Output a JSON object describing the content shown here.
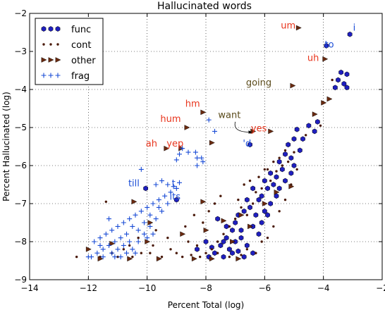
{
  "chart_data": {
    "type": "scatter",
    "title": "Hallucinated words",
    "xlabel": "Percent Total (log)",
    "ylabel": "Percent Hallucinated (log)",
    "xlim": [
      -14,
      -2
    ],
    "ylim": [
      -9,
      -2
    ],
    "xticks": [
      "−14",
      "−12",
      "−10",
      "−8",
      "−6",
      "−4",
      "−2"
    ],
    "yticks": [
      "−9",
      "−8",
      "−7",
      "−6",
      "−5",
      "−4",
      "−3",
      "−2"
    ],
    "xtick_values": [
      -14,
      -12,
      -10,
      -8,
      -6,
      -4,
      -2
    ],
    "ytick_values": [
      -9,
      -8,
      -7,
      -6,
      -5,
      -4,
      -3,
      -2
    ],
    "grid": true,
    "legend_position": "top-left",
    "series": [
      {
        "name": "func",
        "marker": "hexagon",
        "color": "#1f1fbf",
        "points": [
          [
            -3.1,
            -2.55
          ],
          [
            -3.9,
            -2.85
          ],
          [
            -3.4,
            -3.55
          ],
          [
            -3.2,
            -3.6
          ],
          [
            -3.5,
            -3.75
          ],
          [
            -3.3,
            -3.85
          ],
          [
            -3.6,
            -3.95
          ],
          [
            -3.2,
            -3.95
          ],
          [
            -4.2,
            -4.85
          ],
          [
            -4.3,
            -5.1
          ],
          [
            -4.5,
            -4.95
          ],
          [
            -4.9,
            -5.05
          ],
          [
            -4.7,
            -5.3
          ],
          [
            -5.0,
            -5.3
          ],
          [
            -4.8,
            -5.6
          ],
          [
            -5.2,
            -5.45
          ],
          [
            -5.1,
            -5.8
          ],
          [
            -5.3,
            -5.7
          ],
          [
            -5.5,
            -5.9
          ],
          [
            -5.4,
            -6.1
          ],
          [
            -5.6,
            -6.3
          ],
          [
            -5.8,
            -6.2
          ],
          [
            -5.7,
            -6.5
          ],
          [
            -5.9,
            -6.6
          ],
          [
            -6.0,
            -6.4
          ],
          [
            -6.1,
            -6.8
          ],
          [
            -6.2,
            -6.9
          ],
          [
            -6.4,
            -6.6
          ],
          [
            -6.5,
            -7.1
          ],
          [
            -6.6,
            -6.9
          ],
          [
            -6.7,
            -7.2
          ],
          [
            -6.9,
            -7.3
          ],
          [
            -7.0,
            -7.5
          ],
          [
            -7.1,
            -7.7
          ],
          [
            -7.3,
            -7.9
          ],
          [
            -7.5,
            -8.1
          ],
          [
            -7.7,
            -8.3
          ],
          [
            -7.9,
            -8.4
          ],
          [
            -6.3,
            -7.3
          ],
          [
            -6.0,
            -7.2
          ],
          [
            -5.8,
            -7.0
          ],
          [
            -5.6,
            -6.8
          ],
          [
            -6.4,
            -7.6
          ],
          [
            -6.2,
            -7.8
          ],
          [
            -6.8,
            -7.9
          ],
          [
            -7.2,
            -8.2
          ],
          [
            -7.0,
            -8.0
          ],
          [
            -6.6,
            -8.1
          ],
          [
            -6.4,
            -8.3
          ],
          [
            -8.0,
            -8.0
          ],
          [
            -8.3,
            -8.2
          ],
          [
            -7.6,
            -7.4
          ],
          [
            -7.3,
            -7.6
          ],
          [
            -6.1,
            -7.5
          ],
          [
            -5.9,
            -7.3
          ],
          [
            -5.5,
            -6.6
          ],
          [
            -5.3,
            -6.4
          ],
          [
            -5.1,
            -6.2
          ],
          [
            -5.0,
            -6.0
          ],
          [
            -6.5,
            -5.45
          ],
          [
            -10.05,
            -6.6
          ],
          [
            -9.0,
            -6.9
          ],
          [
            -6.8,
            -7.7
          ],
          [
            -7.8,
            -8.15
          ],
          [
            -7.4,
            -8.0
          ],
          [
            -6.9,
            -8.25
          ],
          [
            -6.7,
            -8.4
          ],
          [
            -7.4,
            -8.4
          ],
          [
            -7.1,
            -8.3
          ]
        ]
      },
      {
        "name": "cont",
        "marker": "dot",
        "color": "#4a1a0a",
        "points": [
          [
            -3.7,
            -3.75
          ],
          [
            -4.1,
            -4.95
          ],
          [
            -4.6,
            -5.2
          ],
          [
            -5.0,
            -5.65
          ],
          [
            -5.2,
            -5.9
          ],
          [
            -5.4,
            -6.0
          ],
          [
            -5.6,
            -6.15
          ],
          [
            -5.8,
            -6.4
          ],
          [
            -5.9,
            -6.1
          ],
          [
            -6.1,
            -6.6
          ],
          [
            -6.3,
            -6.7
          ],
          [
            -6.4,
            -7.0
          ],
          [
            -6.6,
            -7.3
          ],
          [
            -6.8,
            -7.1
          ],
          [
            -7.0,
            -7.4
          ],
          [
            -7.2,
            -7.6
          ],
          [
            -7.4,
            -7.8
          ],
          [
            -7.6,
            -8.0
          ],
          [
            -7.8,
            -8.2
          ],
          [
            -8.0,
            -8.3
          ],
          [
            -8.2,
            -8.4
          ],
          [
            -8.5,
            -8.35
          ],
          [
            -8.8,
            -8.4
          ],
          [
            -9.2,
            -8.2
          ],
          [
            -9.5,
            -8.4
          ],
          [
            -9.8,
            -8.1
          ],
          [
            -10.2,
            -8.3
          ],
          [
            -10.5,
            -8.4
          ],
          [
            -10.8,
            -8.2
          ],
          [
            -11.2,
            -8.3
          ],
          [
            -11.6,
            -8.4
          ],
          [
            -12.4,
            -8.4
          ],
          [
            -11.4,
            -6.95
          ],
          [
            -10.3,
            -7.9
          ],
          [
            -9.7,
            -7.7
          ],
          [
            -9.3,
            -7.9
          ],
          [
            -8.7,
            -7.6
          ],
          [
            -8.4,
            -7.3
          ],
          [
            -8.1,
            -7.5
          ],
          [
            -7.9,
            -7.2
          ],
          [
            -7.7,
            -7.0
          ],
          [
            -7.5,
            -6.8
          ],
          [
            -6.9,
            -6.9
          ],
          [
            -6.7,
            -6.5
          ],
          [
            -6.5,
            -6.4
          ],
          [
            -6.2,
            -6.3
          ],
          [
            -6.0,
            -6.1
          ],
          [
            -5.7,
            -5.9
          ],
          [
            -5.5,
            -5.8
          ],
          [
            -5.3,
            -5.6
          ],
          [
            -7.2,
            -8.4
          ],
          [
            -7.6,
            -8.3
          ],
          [
            -8.3,
            -8.1
          ],
          [
            -6.8,
            -8.35
          ],
          [
            -6.6,
            -8.2
          ],
          [
            -6.3,
            -8.3
          ],
          [
            -6.1,
            -8.0
          ],
          [
            -5.9,
            -7.9
          ],
          [
            -5.7,
            -7.6
          ],
          [
            -5.5,
            -7.2
          ],
          [
            -5.3,
            -6.9
          ],
          [
            -5.1,
            -6.5
          ],
          [
            -4.9,
            -6.1
          ],
          [
            -9.0,
            -8.3
          ],
          [
            -9.9,
            -8.3
          ],
          [
            -10.6,
            -8.1
          ],
          [
            -11.0,
            -8.4
          ],
          [
            -8.6,
            -8.0
          ]
        ]
      },
      {
        "name": "other",
        "marker": "triangle",
        "color": "#6a2a10",
        "points": [
          [
            -4.85,
            -2.38
          ],
          [
            -3.95,
            -3.2
          ],
          [
            -5.05,
            -3.9
          ],
          [
            -8.1,
            -4.6
          ],
          [
            -8.65,
            -5.0
          ],
          [
            -6.4,
            -5.1
          ],
          [
            -5.8,
            -5.1
          ],
          [
            -8.85,
            -5.55
          ],
          [
            -9.35,
            -5.55
          ],
          [
            -7.8,
            -5.4
          ],
          [
            -3.8,
            -4.25
          ],
          [
            -4.3,
            -4.65
          ],
          [
            -4.0,
            -4.35
          ],
          [
            -10.45,
            -6.95
          ],
          [
            -9.9,
            -7.5
          ],
          [
            -8.1,
            -6.95
          ],
          [
            -5.1,
            -6.55
          ],
          [
            -5.6,
            -6.7
          ],
          [
            -6.0,
            -7.0
          ],
          [
            -6.8,
            -7.3
          ],
          [
            -7.4,
            -7.45
          ],
          [
            -8.0,
            -7.7
          ],
          [
            -8.8,
            -7.8
          ],
          [
            -10.0,
            -8.0
          ],
          [
            -11.2,
            -8.05
          ],
          [
            -11.6,
            -8.45
          ],
          [
            -10.6,
            -8.45
          ],
          [
            -9.6,
            -8.45
          ],
          [
            -8.4,
            -8.45
          ],
          [
            -12.0,
            -8.2
          ],
          [
            -6.5,
            -7.6
          ],
          [
            -7.1,
            -8.0
          ],
          [
            -7.8,
            -8.45
          ],
          [
            -6.9,
            -8.45
          ]
        ]
      },
      {
        "name": "frag",
        "marker": "plus",
        "color": "#1a4cd6",
        "points": [
          [
            -8.8,
            -5.55
          ],
          [
            -8.6,
            -5.65
          ],
          [
            -8.9,
            -5.7
          ],
          [
            -8.35,
            -5.65
          ],
          [
            -8.3,
            -5.8
          ],
          [
            -8.1,
            -5.9
          ],
          [
            -8.15,
            -5.8
          ],
          [
            -7.9,
            -4.8
          ],
          [
            -7.7,
            -5.1
          ],
          [
            -9.0,
            -5.85
          ],
          [
            -8.3,
            -6.0
          ],
          [
            -10.2,
            -6.1
          ],
          [
            -9.3,
            -6.5
          ],
          [
            -9.1,
            -6.55
          ],
          [
            -9.5,
            -6.4
          ],
          [
            -9.7,
            -6.5
          ],
          [
            -9.4,
            -6.8
          ],
          [
            -9.6,
            -6.9
          ],
          [
            -9.8,
            -7.0
          ],
          [
            -10.0,
            -7.1
          ],
          [
            -10.2,
            -7.2
          ],
          [
            -10.4,
            -7.3
          ],
          [
            -10.6,
            -7.4
          ],
          [
            -10.8,
            -7.5
          ],
          [
            -11.0,
            -7.6
          ],
          [
            -11.2,
            -7.7
          ],
          [
            -11.4,
            -7.8
          ],
          [
            -11.6,
            -7.9
          ],
          [
            -11.8,
            -8.0
          ],
          [
            -10.5,
            -7.6
          ],
          [
            -10.7,
            -7.8
          ],
          [
            -10.9,
            -7.9
          ],
          [
            -11.1,
            -8.0
          ],
          [
            -11.3,
            -8.1
          ],
          [
            -11.5,
            -8.2
          ],
          [
            -11.7,
            -8.3
          ],
          [
            -11.9,
            -8.4
          ],
          [
            -11.5,
            -8.4
          ],
          [
            -11.1,
            -8.4
          ],
          [
            -10.9,
            -8.4
          ],
          [
            -10.7,
            -8.3
          ],
          [
            -10.5,
            -8.2
          ],
          [
            -10.3,
            -8.0
          ],
          [
            -10.1,
            -7.8
          ],
          [
            -9.9,
            -7.6
          ],
          [
            -9.7,
            -7.4
          ],
          [
            -9.5,
            -7.2
          ],
          [
            -9.3,
            -7.0
          ],
          [
            -9.9,
            -7.3
          ],
          [
            -10.1,
            -7.5
          ],
          [
            -10.3,
            -7.7
          ],
          [
            -10.6,
            -8.0
          ],
          [
            -11.0,
            -8.2
          ],
          [
            -11.2,
            -8.3
          ],
          [
            -11.6,
            -8.1
          ],
          [
            -12.0,
            -8.4
          ],
          [
            -9.6,
            -7.1
          ],
          [
            -9.2,
            -6.7
          ],
          [
            -9.0,
            -6.6
          ],
          [
            -8.9,
            -6.45
          ],
          [
            -9.8,
            -7.8
          ],
          [
            -10.4,
            -8.3
          ],
          [
            -10.8,
            -8.1
          ],
          [
            -11.3,
            -7.4
          ],
          [
            -10.0,
            -7.9
          ]
        ]
      }
    ],
    "annotations": [
      {
        "text": "i",
        "x": -2.95,
        "y": -2.45,
        "color": "#1a4cd6"
      },
      {
        "text": "to",
        "x": -3.8,
        "y": -2.9,
        "color": "#1a4cd6"
      },
      {
        "text": "um",
        "x": -5.2,
        "y": -2.4,
        "color": "#e8341c"
      },
      {
        "text": "uh",
        "x": -4.35,
        "y": -3.25,
        "color": "#e8341c"
      },
      {
        "text": "going",
        "x": -6.2,
        "y": -3.9,
        "color": "#5a4a1a"
      },
      {
        "text": "hm",
        "x": -8.45,
        "y": -4.45,
        "color": "#e8341c"
      },
      {
        "text": "hum",
        "x": -9.2,
        "y": -4.85,
        "color": "#e8341c"
      },
      {
        "text": "want",
        "x": -7.2,
        "y": -4.75,
        "color": "#5a4a1a"
      },
      {
        "text": "yes",
        "x": -6.2,
        "y": -5.1,
        "color": "#e8341c"
      },
      {
        "text": "ah",
        "x": -9.85,
        "y": -5.5,
        "color": "#e8341c"
      },
      {
        "text": "yep",
        "x": -9.05,
        "y": -5.5,
        "color": "#e8341c"
      },
      {
        "text": "'d",
        "x": -6.6,
        "y": -5.5,
        "color": "#1a4cd6"
      },
      {
        "text": "till",
        "x": -10.45,
        "y": -6.55,
        "color": "#1a4cd6"
      },
      {
        "text": "t",
        "x": -9.1,
        "y": -6.55,
        "color": "#1a4cd6"
      },
      {
        "text": "its",
        "x": -9.05,
        "y": -6.9,
        "color": "#1a4cd6"
      }
    ],
    "arrows": [
      {
        "from": [
          -7.0,
          -4.85
        ],
        "to": [
          -6.45,
          -5.12
        ]
      }
    ]
  }
}
